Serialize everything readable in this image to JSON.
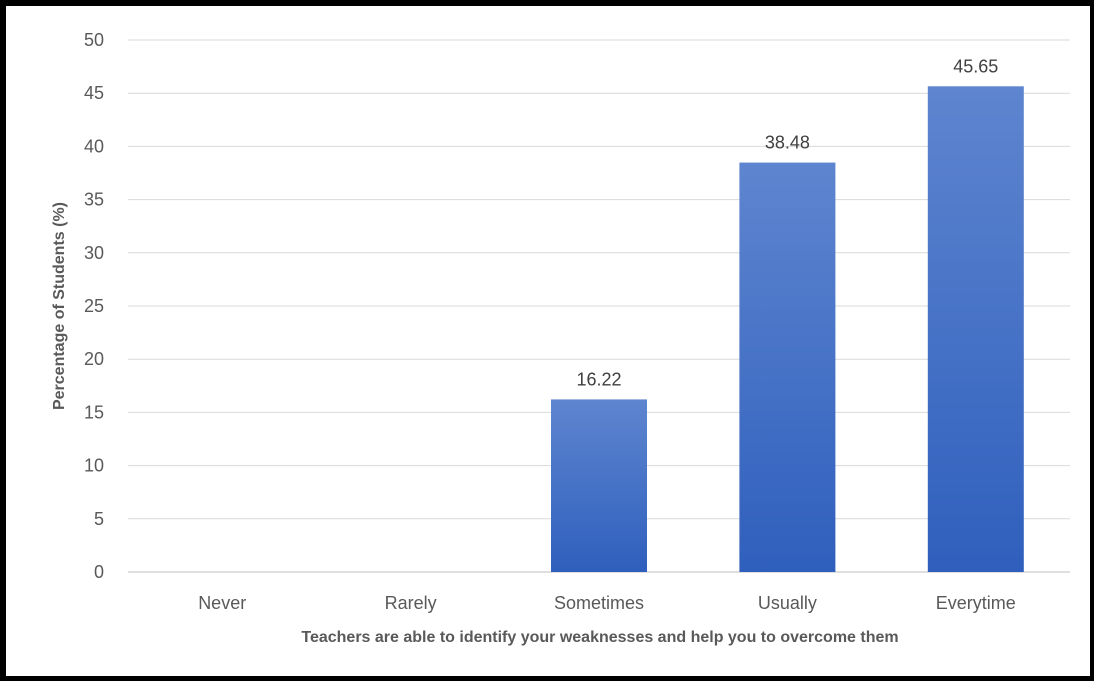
{
  "chart_data": {
    "type": "bar",
    "title": "",
    "categories": [
      "Never",
      "Rarely",
      "Sometimes",
      "Usually",
      "Everytime"
    ],
    "values": [
      0,
      0,
      16.22,
      38.48,
      45.65
    ],
    "data_labels": [
      "",
      "",
      "16.22",
      "38.48",
      "45.65"
    ],
    "xlabel": "Teachers are able to identify your weaknesses and help you to overcome them",
    "ylabel": "Percentage of Students (%)",
    "ylim": [
      0,
      50
    ],
    "yticks": [
      "0",
      "5",
      "10",
      "15",
      "20",
      "25",
      "30",
      "35",
      "40",
      "45",
      "50"
    ],
    "grid": true,
    "legend": "none",
    "colors": {
      "bar_top": "#5e85cf",
      "bar_bottom": "#2f5fbd",
      "grid": "#d9d9d9",
      "axis": "#bfbfbf"
    }
  }
}
